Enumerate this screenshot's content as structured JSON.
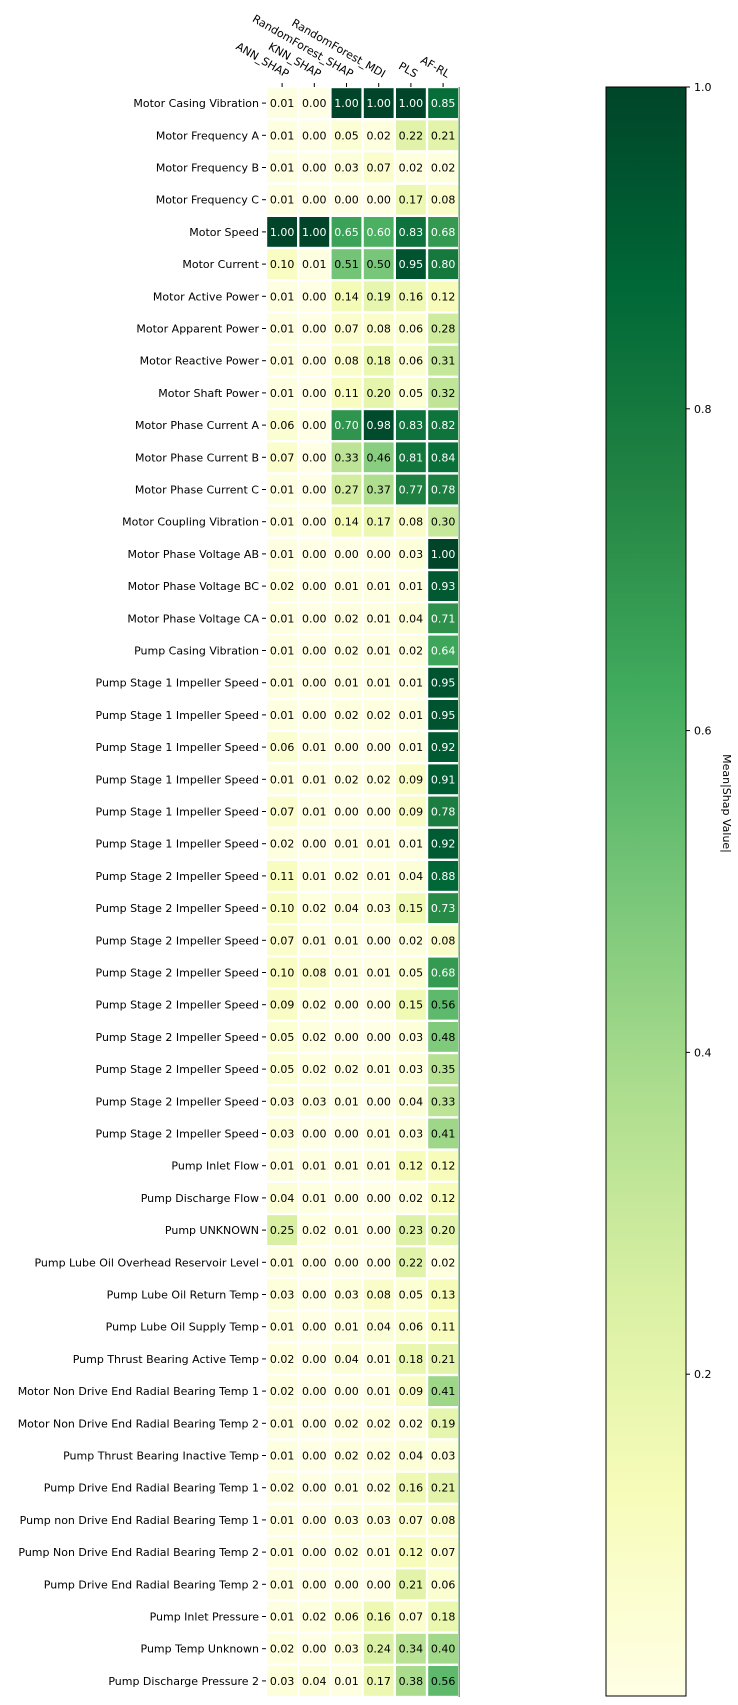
{
  "chart_data": {
    "type": "heatmap",
    "title": "",
    "x_labels": [
      "ANN_SHAP",
      "KNN_SHAP",
      "RandomForest_SHAP",
      "RandomForest_MDI",
      "PLS",
      "AF-RL"
    ],
    "y_labels": [
      "Motor Casing Vibration",
      "Motor Frequency A",
      "Motor Frequency B",
      "Motor Frequency C",
      "Motor Speed",
      "Motor Current",
      "Motor Active Power",
      "Motor Apparent Power",
      "Motor Reactive Power",
      "Motor Shaft Power",
      "Motor Phase Current A",
      "Motor Phase Current B",
      "Motor Phase Current C",
      "Motor Coupling Vibration",
      "Motor Phase Voltage AB",
      "Motor Phase Voltage BC",
      "Motor Phase Voltage CA",
      "Pump Casing Vibration",
      "Pump Stage 1 Impeller Speed",
      "Pump Stage 1 Impeller Speed",
      "Pump Stage 1 Impeller Speed",
      "Pump Stage 1 Impeller Speed",
      "Pump Stage 1 Impeller Speed",
      "Pump Stage 1 Impeller Speed",
      "Pump Stage 2 Impeller Speed",
      "Pump Stage 2 Impeller Speed",
      "Pump Stage 2 Impeller Speed",
      "Pump Stage 2 Impeller Speed",
      "Pump Stage 2 Impeller Speed",
      "Pump Stage 2 Impeller Speed",
      "Pump Stage 2 Impeller Speed",
      "Pump Stage 2 Impeller Speed",
      "Pump Stage 2 Impeller Speed",
      "Pump Inlet Flow",
      "Pump Discharge Flow",
      "Pump UNKNOWN",
      "Pump Lube Oil Overhead Reservoir Level",
      "Pump Lube Oil Return Temp",
      "Pump Lube Oil Supply Temp",
      "Pump Thrust Bearing Active Temp",
      "Motor Non Drive End Radial Bearing Temp 1",
      "Motor Non Drive End Radial Bearing Temp 2",
      "Pump Thrust Bearing Inactive Temp",
      "Pump Drive End Radial Bearing Temp 1",
      "Pump non Drive End Radial Bearing Temp 1",
      "Pump Non Drive End Radial Bearing Temp 2",
      "Pump Drive End Radial Bearing Temp 2",
      "Pump Inlet Pressure",
      "Pump Temp Unknown",
      "Pump Discharge Pressure 2"
    ],
    "values": [
      [
        0.01,
        0.0,
        1.0,
        1.0,
        1.0,
        0.85
      ],
      [
        0.01,
        0.0,
        0.05,
        0.02,
        0.22,
        0.21
      ],
      [
        0.01,
        0.0,
        0.03,
        0.07,
        0.02,
        0.02
      ],
      [
        0.01,
        0.0,
        0.0,
        0.0,
        0.17,
        0.08
      ],
      [
        1.0,
        1.0,
        0.65,
        0.6,
        0.83,
        0.68
      ],
      [
        0.1,
        0.01,
        0.51,
        0.5,
        0.95,
        0.8
      ],
      [
        0.01,
        0.0,
        0.14,
        0.19,
        0.16,
        0.12
      ],
      [
        0.01,
        0.0,
        0.07,
        0.08,
        0.06,
        0.28
      ],
      [
        0.01,
        0.0,
        0.08,
        0.18,
        0.06,
        0.31
      ],
      [
        0.01,
        0.0,
        0.11,
        0.2,
        0.05,
        0.32
      ],
      [
        0.06,
        0.0,
        0.7,
        0.98,
        0.83,
        0.82
      ],
      [
        0.07,
        0.0,
        0.33,
        0.46,
        0.81,
        0.84
      ],
      [
        0.01,
        0.0,
        0.27,
        0.37,
        0.77,
        0.78
      ],
      [
        0.01,
        0.0,
        0.14,
        0.17,
        0.08,
        0.3
      ],
      [
        0.01,
        0.0,
        0.0,
        0.0,
        0.03,
        1.0
      ],
      [
        0.02,
        0.0,
        0.01,
        0.01,
        0.01,
        0.93
      ],
      [
        0.01,
        0.0,
        0.02,
        0.01,
        0.04,
        0.71
      ],
      [
        0.01,
        0.0,
        0.02,
        0.01,
        0.02,
        0.64
      ],
      [
        0.01,
        0.0,
        0.01,
        0.01,
        0.01,
        0.95
      ],
      [
        0.01,
        0.0,
        0.02,
        0.02,
        0.01,
        0.95
      ],
      [
        0.06,
        0.01,
        0.0,
        0.0,
        0.01,
        0.92
      ],
      [
        0.01,
        0.01,
        0.02,
        0.02,
        0.09,
        0.91
      ],
      [
        0.07,
        0.01,
        0.0,
        0.0,
        0.09,
        0.78
      ],
      [
        0.02,
        0.0,
        0.01,
        0.01,
        0.01,
        0.92
      ],
      [
        0.11,
        0.01,
        0.02,
        0.01,
        0.04,
        0.88
      ],
      [
        0.1,
        0.02,
        0.04,
        0.03,
        0.15,
        0.73
      ],
      [
        0.07,
        0.01,
        0.01,
        0.0,
        0.02,
        0.08
      ],
      [
        0.1,
        0.08,
        0.01,
        0.01,
        0.05,
        0.68
      ],
      [
        0.09,
        0.02,
        0.0,
        0.0,
        0.15,
        0.56
      ],
      [
        0.05,
        0.02,
        0.0,
        0.0,
        0.03,
        0.48
      ],
      [
        0.05,
        0.02,
        0.02,
        0.01,
        0.03,
        0.35
      ],
      [
        0.03,
        0.03,
        0.01,
        0.0,
        0.04,
        0.33
      ],
      [
        0.03,
        0.0,
        0.0,
        0.01,
        0.03,
        0.41
      ],
      [
        0.01,
        0.01,
        0.01,
        0.01,
        0.12,
        0.12
      ],
      [
        0.04,
        0.01,
        0.0,
        0.0,
        0.02,
        0.12
      ],
      [
        0.25,
        0.02,
        0.01,
        0.0,
        0.23,
        0.2
      ],
      [
        0.01,
        0.0,
        0.0,
        0.0,
        0.22,
        0.02
      ],
      [
        0.03,
        0.0,
        0.03,
        0.08,
        0.05,
        0.13
      ],
      [
        0.01,
        0.0,
        0.01,
        0.04,
        0.06,
        0.11
      ],
      [
        0.02,
        0.0,
        0.04,
        0.01,
        0.18,
        0.21
      ],
      [
        0.02,
        0.0,
        0.0,
        0.01,
        0.09,
        0.41
      ],
      [
        0.01,
        0.0,
        0.02,
        0.02,
        0.02,
        0.19
      ],
      [
        0.01,
        0.0,
        0.02,
        0.02,
        0.04,
        0.03
      ],
      [
        0.02,
        0.0,
        0.01,
        0.02,
        0.16,
        0.21
      ],
      [
        0.01,
        0.0,
        0.03,
        0.03,
        0.07,
        0.08
      ],
      [
        0.01,
        0.0,
        0.02,
        0.01,
        0.12,
        0.07
      ],
      [
        0.01,
        0.0,
        0.0,
        0.0,
        0.21,
        0.06
      ],
      [
        0.01,
        0.02,
        0.06,
        0.16,
        0.07,
        0.18
      ],
      [
        0.02,
        0.0,
        0.03,
        0.24,
        0.34,
        0.4
      ],
      [
        0.03,
        0.04,
        0.01,
        0.17,
        0.38,
        0.56
      ]
    ],
    "value_format": "2 decimals",
    "colormap": "YlGn",
    "colormap_stops": [
      "#ffffe5",
      "#f7fcb9",
      "#d9f0a3",
      "#addd8e",
      "#78c679",
      "#41ab5d",
      "#238443",
      "#006837",
      "#004529"
    ],
    "colorbar": {
      "label": "Mean|Shap Value|",
      "range": [
        0.0,
        1.0
      ],
      "ticks": [
        0.2,
        0.4,
        0.6,
        0.8,
        1.0
      ],
      "tick_labels": [
        "0.2",
        "0.4",
        "0.6",
        "0.8",
        "1.0"
      ]
    },
    "cell_separator_color": "#ffffff",
    "grid": false
  }
}
